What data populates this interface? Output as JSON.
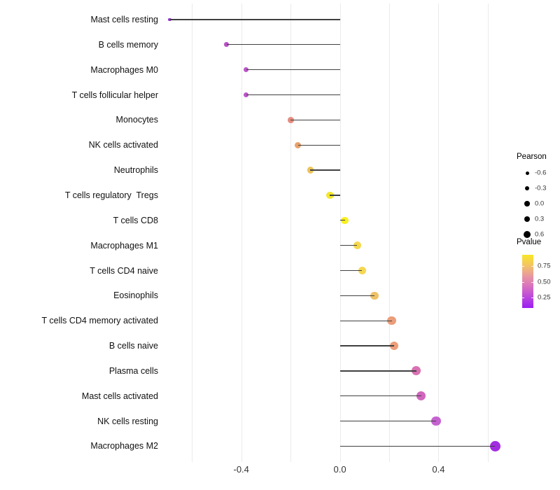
{
  "chart_data": {
    "type": "lollipop",
    "orientation": "horizontal",
    "title": "",
    "xlabel": "",
    "ylabel": "",
    "x_axis": {
      "range": [
        -0.72,
        0.66
      ],
      "tick_values": [
        -0.4,
        0.0,
        0.4
      ],
      "tick_labels": [
        "-0.4",
        "0.0",
        "0.4"
      ],
      "gridline_values": [
        -0.6,
        -0.4,
        -0.2,
        0.0,
        0.2,
        0.4,
        0.6
      ]
    },
    "encoding": {
      "size": "Pearson correlation",
      "color": "Pvalue"
    },
    "points": [
      {
        "label": "Mast cells resting",
        "pearson": -0.69,
        "pvalue": 0.12,
        "color": "#9a30d8"
      },
      {
        "label": "B cells memory",
        "pearson": -0.46,
        "pvalue": 0.3,
        "color": "#b951c6"
      },
      {
        "label": "Macrophages M0",
        "pearson": -0.38,
        "pvalue": 0.32,
        "color": "#bd55c9"
      },
      {
        "label": "T cells follicular helper",
        "pearson": -0.38,
        "pvalue": 0.32,
        "color": "#bd55c9"
      },
      {
        "label": "Monocytes",
        "pearson": -0.2,
        "pvalue": 0.55,
        "color": "#e58d7f"
      },
      {
        "label": "NK cells activated",
        "pearson": -0.17,
        "pvalue": 0.64,
        "color": "#e9a06c"
      },
      {
        "label": "Neutrophils",
        "pearson": -0.12,
        "pvalue": 0.73,
        "color": "#edc35b"
      },
      {
        "label": "T cells regulatory  Tregs",
        "pearson": -0.04,
        "pvalue": 0.88,
        "color": "#f3e72a"
      },
      {
        "label": "T cells CD8",
        "pearson": 0.02,
        "pvalue": 0.92,
        "color": "#f8f021"
      },
      {
        "label": "Macrophages M1",
        "pearson": 0.07,
        "pvalue": 0.85,
        "color": "#f5d84d"
      },
      {
        "label": "T cells CD4 naive",
        "pearson": 0.09,
        "pvalue": 0.83,
        "color": "#f5d751"
      },
      {
        "label": "Eosinophils",
        "pearson": 0.14,
        "pvalue": 0.72,
        "color": "#eec267"
      },
      {
        "label": "T cells CD4 memory activated",
        "pearson": 0.21,
        "pvalue": 0.58,
        "color": "#eb9d7a"
      },
      {
        "label": "B cells naive",
        "pearson": 0.22,
        "pvalue": 0.58,
        "color": "#ec9e78"
      },
      {
        "label": "Plasma cells",
        "pearson": 0.31,
        "pvalue": 0.44,
        "color": "#d871b2"
      },
      {
        "label": "Mast cells activated",
        "pearson": 0.33,
        "pvalue": 0.38,
        "color": "#d165be"
      },
      {
        "label": "NK cells resting",
        "pearson": 0.39,
        "pvalue": 0.29,
        "color": "#c562cf"
      },
      {
        "label": "Macrophages M2",
        "pearson": 0.63,
        "pvalue": 0.1,
        "color": "#a32ce2"
      }
    ],
    "legend_size": {
      "title": "Pearson",
      "entries": [
        "-0.6",
        "-0.3",
        "0.0",
        "0.3",
        "0.6"
      ],
      "dot_color": "#000000"
    },
    "legend_color": {
      "title": "Pvalue",
      "tick_labels": [
        "0.75",
        "0.50",
        "0.25"
      ],
      "gradient_stops_top_to_bottom": [
        "#f9e626",
        "#f3c464",
        "#e898a0",
        "#d76fc0",
        "#ba46dc",
        "#9a1ff2"
      ]
    },
    "stem_color": "#404040",
    "gridline_color": "#ebebeb",
    "axis_text_color": "#333333"
  }
}
